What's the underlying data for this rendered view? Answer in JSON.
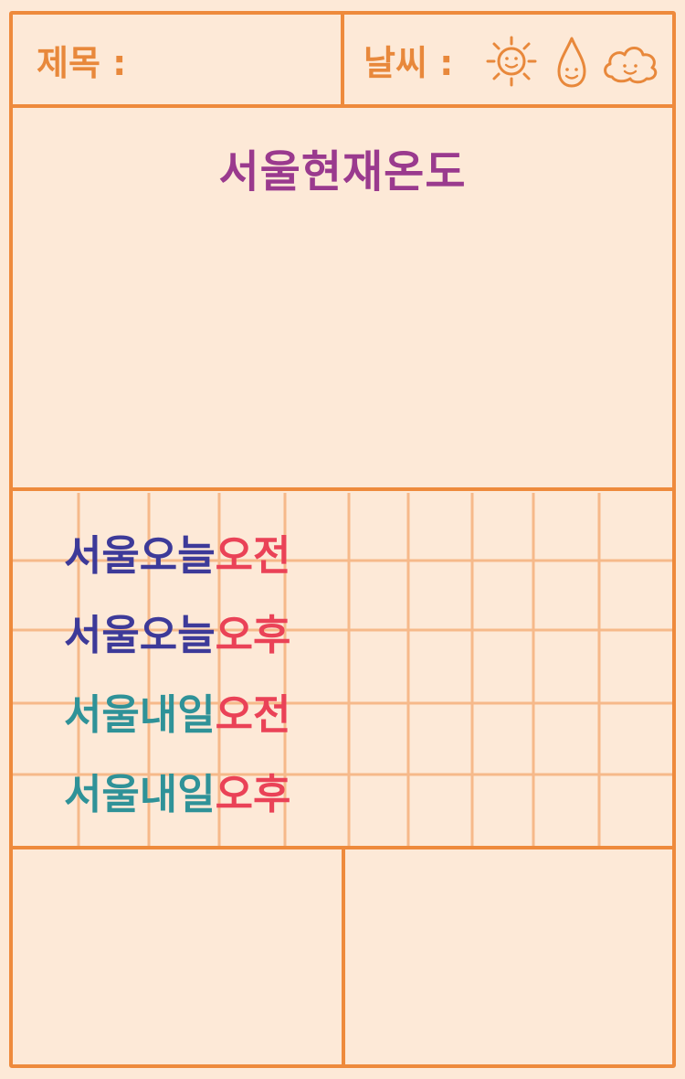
{
  "header": {
    "title_label": "제목 :",
    "weather_label": "날씨 :",
    "weather_icons": [
      "sun-icon",
      "raindrop-icon",
      "cloud-icon"
    ]
  },
  "main": {
    "heading": "서울현재온도"
  },
  "forecast_list": [
    {
      "city_day": "서울오늘",
      "period": "오전"
    },
    {
      "city_day": "서울오늘",
      "period": "오후"
    },
    {
      "city_day": "서울내일",
      "period": "오전"
    },
    {
      "city_day": "서울내일",
      "period": "오후"
    }
  ],
  "colors": {
    "background": "#fde9d7",
    "line": "#ee8a3c",
    "grid_line": "#f6b98a",
    "header_text": "#e8883b",
    "heading": "#9a3a8e",
    "today": "#3d3a99",
    "tomorrow": "#2f9298",
    "period": "#ea4257"
  }
}
